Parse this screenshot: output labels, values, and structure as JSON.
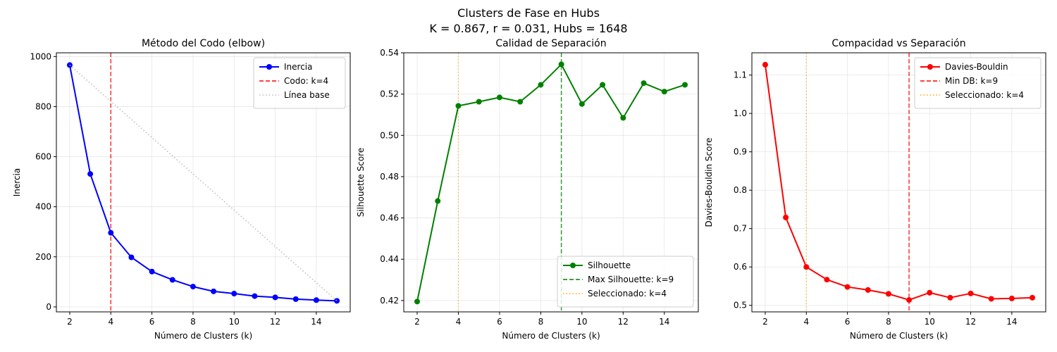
{
  "figure": {
    "suptitle_line1": "Clusters de Fase en Hubs",
    "suptitle_line2": "K = 0.867, r = 0.031, Hubs = 1648"
  },
  "chart_data": [
    {
      "type": "line",
      "title": "Método del Codo (elbow)",
      "xlabel": "Número de Clusters (k)",
      "ylabel": "Inercia",
      "xlim": [
        1.35,
        15.65
      ],
      "ylim": [
        -20,
        1015
      ],
      "xticks": [
        2,
        4,
        6,
        8,
        10,
        12,
        14
      ],
      "yticks": [
        0,
        200,
        400,
        600,
        800,
        1000
      ],
      "grid": true,
      "legend_position": "upper right",
      "series": [
        {
          "name": "Inercia",
          "style": "line-marker",
          "color": "#0000ff",
          "x": [
            2,
            3,
            4,
            5,
            6,
            7,
            8,
            9,
            10,
            11,
            12,
            13,
            14,
            15
          ],
          "y": [
            966,
            531,
            296,
            198,
            141,
            108,
            81,
            62,
            53,
            43,
            38,
            31,
            27,
            24
          ]
        },
        {
          "name": "Línea base",
          "style": "dotted",
          "color": "#bbbbbb",
          "x": [
            2,
            15
          ],
          "y": [
            966,
            24
          ]
        }
      ],
      "vlines": [
        {
          "name": "Codo: k=4",
          "x": 4,
          "style": "dashed",
          "color": "#ff0000"
        }
      ],
      "legend": [
        {
          "label": "Inercia",
          "kind": "line-marker",
          "color": "#0000ff"
        },
        {
          "label": "Codo: k=4",
          "kind": "dashed",
          "color": "#ff0000"
        },
        {
          "label": "Línea base",
          "kind": "dotted",
          "color": "#bbbbbb"
        }
      ]
    },
    {
      "type": "line",
      "title": "Calidad de Separación",
      "xlabel": "Número de Clusters (k)",
      "ylabel": "Silhouette Score",
      "xlim": [
        1.35,
        15.65
      ],
      "ylim": [
        0.4145,
        0.54
      ],
      "xticks": [
        2,
        4,
        6,
        8,
        10,
        12,
        14
      ],
      "yticks": [
        0.42,
        0.44,
        0.46,
        0.48,
        0.5,
        0.52,
        0.54
      ],
      "ytick_labels": [
        "0.42",
        "0.44",
        "0.46",
        "0.48",
        "0.50",
        "0.52",
        "0.54"
      ],
      "grid": true,
      "legend_position": "lower right",
      "series": [
        {
          "name": "Silhouette",
          "style": "line-marker",
          "color": "#008000",
          "x": [
            2,
            3,
            4,
            5,
            6,
            7,
            8,
            9,
            10,
            11,
            12,
            13,
            14,
            15
          ],
          "y": [
            0.4195,
            0.4682,
            0.5143,
            0.5163,
            0.5184,
            0.5163,
            0.5245,
            0.5344,
            0.5152,
            0.5245,
            0.5085,
            0.5253,
            0.5212,
            0.5245
          ]
        }
      ],
      "vlines": [
        {
          "name": "Max Silhouette: k=9",
          "x": 9,
          "style": "dashed",
          "color": "#008000"
        },
        {
          "name": "Seleccionado: k=4",
          "x": 4,
          "style": "dotted",
          "color": "#ffa500"
        }
      ],
      "legend": [
        {
          "label": "Silhouette",
          "kind": "line-marker",
          "color": "#008000"
        },
        {
          "label": "Max Silhouette: k=9",
          "kind": "dashed",
          "color": "#008000"
        },
        {
          "label": "Seleccionado: k=4",
          "kind": "dotted",
          "color": "#ffa500"
        }
      ]
    },
    {
      "type": "line",
      "title": "Compacidad vs Separación",
      "xlabel": "Número de Clusters (k)",
      "ylabel": "Davies-Bouldin Score",
      "xlim": [
        1.35,
        15.65
      ],
      "ylim": [
        0.483,
        1.158
      ],
      "xticks": [
        2,
        4,
        6,
        8,
        10,
        12,
        14
      ],
      "yticks": [
        0.5,
        0.6,
        0.7,
        0.8,
        0.9,
        1.0,
        1.1
      ],
      "ytick_labels": [
        "0.5",
        "0.6",
        "0.7",
        "0.8",
        "0.9",
        "1.0",
        "1.1"
      ],
      "grid": true,
      "legend_position": "upper right",
      "series": [
        {
          "name": "Davies-Bouldin",
          "style": "line-marker",
          "color": "#ff0000",
          "x": [
            2,
            3,
            4,
            5,
            6,
            7,
            8,
            9,
            10,
            11,
            12,
            13,
            14,
            15
          ],
          "y": [
            1.127,
            0.729,
            0.6,
            0.567,
            0.548,
            0.54,
            0.53,
            0.514,
            0.533,
            0.52,
            0.531,
            0.517,
            0.518,
            0.52
          ]
        }
      ],
      "vlines": [
        {
          "name": "Min DB: k=9",
          "x": 9,
          "style": "dashed",
          "color": "#ff0000"
        },
        {
          "name": "Seleccionado: k=4",
          "x": 4,
          "style": "dotted",
          "color": "#ffa500"
        }
      ],
      "legend": [
        {
          "label": "Davies-Bouldin",
          "kind": "line-marker",
          "color": "#ff0000"
        },
        {
          "label": "Min DB: k=9",
          "kind": "dashed",
          "color": "#ff0000"
        },
        {
          "label": "Seleccionado: k=4",
          "kind": "dotted",
          "color": "#ffa500"
        }
      ]
    }
  ]
}
